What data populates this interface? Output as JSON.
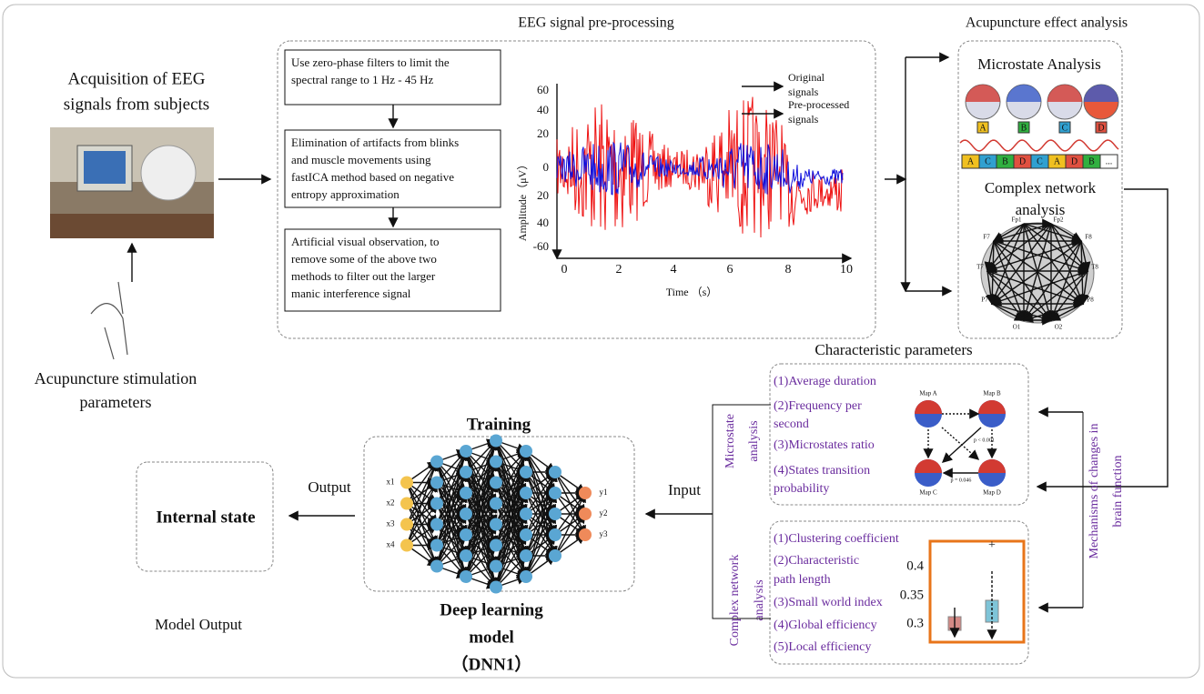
{
  "acquisition": {
    "title_lines": [
      "Acquisition of EEG",
      "signals from subjects"
    ]
  },
  "stimulation": {
    "label_lines": [
      "Acupuncture stimulation",
      "parameters"
    ]
  },
  "preprocessing": {
    "title": "EEG signal pre-processing",
    "steps": [
      [
        "Use zero-phase filters to limit the",
        "spectral range to 1 Hz - 45 Hz"
      ],
      [
        "Elimination of artifacts from blinks",
        "and muscle movements using",
        "fastICA method based on negative",
        "entropy approximation"
      ],
      [
        "Artificial visual observation, to",
        "remove some of the above two",
        "methods to filter out the larger",
        "manic interference signal"
      ]
    ],
    "plot": {
      "y_label": "Amplitude（μV）",
      "x_label": "Time （s）",
      "yticks": [
        "60",
        "40",
        "20",
        "0",
        "20",
        "40",
        "-60"
      ],
      "xticks": [
        "0",
        "2",
        "4",
        "6",
        "8",
        "10"
      ],
      "legend": [
        [
          "Original",
          "signals"
        ],
        [
          "Pre-processed",
          "signals"
        ]
      ]
    }
  },
  "analysis": {
    "title": "Acupuncture effect analysis",
    "microstate_title": "Microstate Analysis",
    "maps": [
      "A",
      "B",
      "C",
      "D"
    ],
    "sequence": [
      "A",
      "C",
      "B",
      "D",
      "C",
      "A",
      "D",
      "B",
      "..."
    ],
    "network_title_lines": [
      "Complex network",
      "analysis"
    ],
    "electrodes": [
      "Fp1",
      "Fp2",
      "F7",
      "F8",
      "T7",
      "T8",
      "P7",
      "P8",
      "O1",
      "O2"
    ]
  },
  "characteristic": {
    "title": "Characteristic parameters",
    "side_label_lines": [
      "Microstate",
      "analysis"
    ],
    "items": [
      [
        "(1)Average duration"
      ],
      [
        "(2)Frequency per",
        "second"
      ],
      [
        "(3)Microstates ratio"
      ],
      [
        "(4)States transition",
        "probability"
      ]
    ],
    "maps": [
      "Map A",
      "Map B",
      "Map C",
      "Map D"
    ],
    "p_values": [
      "p < 0.001",
      "p = 0.046"
    ]
  },
  "network": {
    "side_label_lines": [
      "Complex network",
      "analysis"
    ],
    "items": [
      [
        "(1)Clustering coefficient"
      ],
      [
        "(2)Characteristic",
        "path length"
      ],
      [
        "(3)Small world index"
      ],
      [
        "(4)Global efficiency"
      ],
      [
        "(5)Local efficiency"
      ]
    ],
    "yticks": [
      "0.4",
      "0.35",
      "0.3"
    ]
  },
  "mechanisms": {
    "label_lines": [
      "Mechanisms of changes in",
      "brain function"
    ]
  },
  "training": {
    "title": "Training",
    "inputs": [
      "x1",
      "x2",
      "x3",
      "x4"
    ],
    "outputs": [
      "y1",
      "y2",
      "y3"
    ],
    "model_lines": [
      "Deep learning",
      "model",
      "（DNN1）"
    ]
  },
  "flow": {
    "input": "Input",
    "output": "Output",
    "internal_state": "Internal state",
    "model_output": "Model Output"
  }
}
